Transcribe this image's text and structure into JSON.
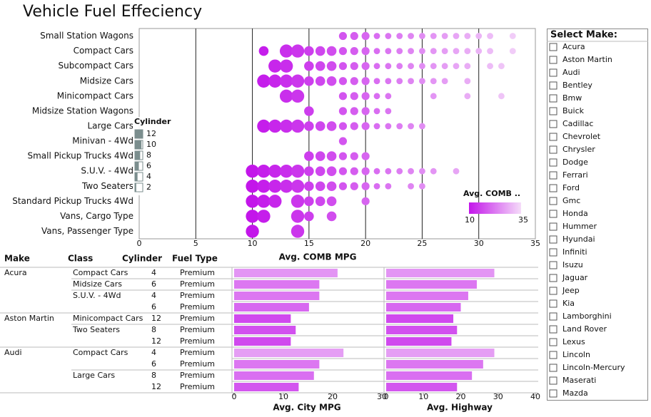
{
  "title": "Vehicle Fuel Effeciency",
  "chart_data": [
    {
      "type": "bubble",
      "x_label": "Avg. COMB MPG",
      "categories": [
        "Small Station Wagons",
        "Compact Cars",
        "Subcompact Cars",
        "Midsize Cars",
        "Minicompact Cars",
        "Midsize Station Wagons",
        "Large Cars",
        "Minivan - 4Wd",
        "Small Pickup Trucks 4Wd",
        "S.U.V. - 4Wd",
        "Two Seaters",
        "Standard Pickup Trucks 4Wd",
        "Vans, Cargo Type",
        "Vans, Passenger Type"
      ],
      "rows": [
        {
          "x": [
            18,
            19,
            20,
            21,
            22,
            23,
            24,
            25,
            26,
            27,
            28,
            29,
            30,
            31,
            33
          ],
          "cylinder": [
            6,
            6,
            6,
            4,
            4,
            4,
            4,
            4,
            4,
            4,
            4,
            4,
            4,
            4,
            4
          ]
        },
        {
          "x": [
            11,
            13,
            14,
            15,
            16,
            17,
            18,
            19,
            20,
            21,
            22,
            23,
            24,
            25,
            26,
            27,
            28,
            29,
            30,
            31,
            33
          ],
          "cylinder": [
            8,
            12,
            12,
            8,
            8,
            8,
            6,
            6,
            6,
            4,
            4,
            4,
            4,
            4,
            4,
            4,
            4,
            4,
            4,
            4,
            4
          ]
        },
        {
          "x": [
            12,
            13,
            15,
            16,
            17,
            18,
            19,
            20,
            21,
            22,
            23,
            24,
            25,
            26,
            27,
            28,
            29,
            31,
            32
          ],
          "cylinder": [
            12,
            12,
            8,
            8,
            8,
            6,
            6,
            6,
            4,
            4,
            4,
            4,
            4,
            4,
            4,
            4,
            4,
            4,
            4
          ]
        },
        {
          "x": [
            11,
            12,
            13,
            14,
            15,
            16,
            17,
            18,
            19,
            20,
            21,
            22,
            23,
            24,
            25,
            26,
            27,
            29
          ],
          "cylinder": [
            12,
            12,
            12,
            12,
            8,
            8,
            8,
            6,
            6,
            6,
            4,
            4,
            4,
            4,
            4,
            4,
            4,
            4
          ]
        },
        {
          "x": [
            13,
            14,
            18,
            19,
            20,
            21,
            22,
            26,
            29,
            32
          ],
          "cylinder": [
            12,
            12,
            6,
            6,
            6,
            4,
            4,
            4,
            4,
            4
          ]
        },
        {
          "x": [
            15,
            18,
            19,
            20,
            21,
            22
          ],
          "cylinder": [
            8,
            6,
            6,
            6,
            4,
            4
          ]
        },
        {
          "x": [
            11,
            12,
            13,
            14,
            15,
            16,
            17,
            18,
            19,
            20,
            21,
            22,
            23,
            24,
            25
          ],
          "cylinder": [
            12,
            12,
            12,
            12,
            8,
            8,
            8,
            6,
            6,
            6,
            4,
            4,
            4,
            4,
            4
          ]
        },
        {
          "x": [
            18
          ],
          "cylinder": [
            6
          ]
        },
        {
          "x": [
            15,
            16,
            17,
            18,
            19,
            20
          ],
          "cylinder": [
            8,
            8,
            8,
            6,
            6,
            6
          ]
        },
        {
          "x": [
            10,
            11,
            12,
            13,
            14,
            15,
            16,
            17,
            18,
            19,
            20,
            21,
            22,
            23,
            24,
            25,
            26,
            28
          ],
          "cylinder": [
            12,
            12,
            12,
            12,
            12,
            8,
            8,
            8,
            6,
            6,
            6,
            4,
            4,
            4,
            4,
            4,
            4,
            4
          ]
        },
        {
          "x": [
            10,
            11,
            12,
            13,
            14,
            15,
            16,
            17,
            18,
            19,
            20,
            21,
            22,
            24,
            25
          ],
          "cylinder": [
            12,
            12,
            12,
            12,
            12,
            8,
            8,
            8,
            6,
            6,
            6,
            4,
            4,
            4,
            4
          ]
        },
        {
          "x": [
            10,
            11,
            12,
            14,
            15,
            16,
            17,
            20
          ],
          "cylinder": [
            12,
            12,
            12,
            12,
            8,
            8,
            8,
            6
          ]
        },
        {
          "x": [
            10,
            11,
            14,
            15,
            17
          ],
          "cylinder": [
            12,
            12,
            12,
            8,
            8
          ]
        },
        {
          "x": [
            10,
            14
          ],
          "cylinder": [
            12,
            12
          ]
        }
      ],
      "xlim": [
        0,
        35
      ],
      "xticks": [
        0,
        5,
        10,
        15,
        20,
        25,
        30,
        35
      ],
      "grid": true,
      "size_legend": {
        "title": "Cylinder",
        "values": [
          12,
          10,
          8,
          6,
          4,
          2
        ]
      },
      "color_scale": {
        "title": "Avg. COMB ..",
        "min": 10,
        "max": 35,
        "colors": [
          "#c316ea",
          "#f5dcf9"
        ]
      }
    },
    {
      "type": "hbar",
      "x_label": "Avg. City MPG",
      "values": [
        21,
        17.3,
        17.3,
        15.2,
        11.5,
        12.5,
        11.5,
        22.2,
        17.3,
        16.2,
        13.1
      ],
      "xlim": [
        0,
        30
      ],
      "xticks": [
        0,
        10,
        20,
        30
      ]
    },
    {
      "type": "hbar",
      "x_label": "Avg. Highway",
      "values": [
        29,
        24.3,
        22,
        20,
        18,
        19,
        17.5,
        29,
        26,
        23,
        19
      ],
      "xlim": [
        0,
        40
      ],
      "xticks": [
        0,
        10,
        20,
        30,
        40
      ]
    }
  ],
  "table": {
    "columns": [
      "Make",
      "Class",
      "Cylinder",
      "Fuel Type"
    ],
    "rows": [
      [
        "Acura",
        "Compact Cars",
        4,
        "Premium"
      ],
      [
        null,
        "Midsize Cars",
        6,
        "Premium"
      ],
      [
        null,
        "S.U.V. - 4Wd",
        4,
        "Premium"
      ],
      [
        null,
        null,
        6,
        "Premium"
      ],
      [
        "Aston Martin",
        "Minicompact Cars",
        12,
        "Premium"
      ],
      [
        null,
        "Two Seaters",
        8,
        "Premium"
      ],
      [
        null,
        null,
        12,
        "Premium"
      ],
      [
        "Audi",
        "Compact Cars",
        4,
        "Premium"
      ],
      [
        null,
        null,
        6,
        "Premium"
      ],
      [
        null,
        "Large Cars",
        8,
        "Premium"
      ],
      [
        null,
        null,
        12,
        "Premium"
      ]
    ]
  },
  "filter": {
    "title": "Select Make:",
    "options": [
      "Acura",
      "Aston Martin",
      "Audi",
      "Bentley",
      "Bmw",
      "Buick",
      "Cadillac",
      "Chevrolet",
      "Chrysler",
      "Dodge",
      "Ferrari",
      "Ford",
      "Gmc",
      "Honda",
      "Hummer",
      "Hyundai",
      "Infiniti",
      "Isuzu",
      "Jaguar",
      "Jeep",
      "Kia",
      "Lamborghini",
      "Land Rover",
      "Lexus",
      "Lincoln",
      "Lincoln-Mercury",
      "Maserati",
      "Mazda"
    ]
  }
}
